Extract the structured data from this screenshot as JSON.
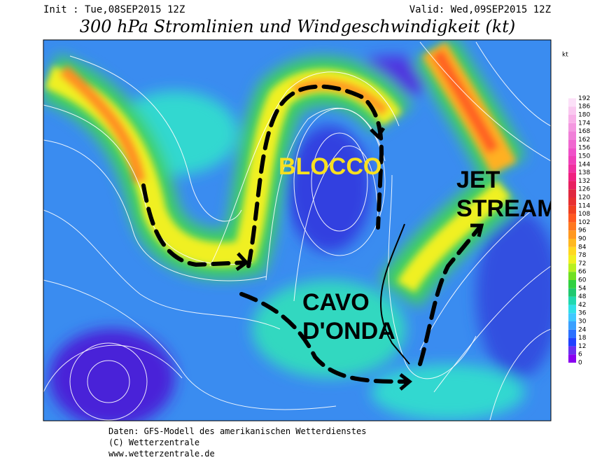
{
  "header": {
    "init": "Init : Tue,08SEP2015  12Z",
    "valid": "Valid: Wed,09SEP2015  12Z",
    "title": "300 hPa Stromlinien und Windgeschwindigkeit (kt)"
  },
  "colorbar": {
    "unit": "kt",
    "labels": [
      0,
      6,
      12,
      18,
      24,
      30,
      36,
      42,
      48,
      54,
      60,
      66,
      72,
      78,
      84,
      90,
      96,
      102,
      108,
      114,
      120,
      126,
      132,
      138,
      144,
      150,
      156,
      162,
      168,
      174,
      180,
      186,
      192
    ],
    "colors": [
      "#8a00f0",
      "#6a30f0",
      "#2040ff",
      "#2a70ff",
      "#3aa0ff",
      "#40c8ff",
      "#30e0e8",
      "#20d8b0",
      "#20c870",
      "#30d040",
      "#70e020",
      "#b8f020",
      "#f0f020",
      "#ffd820",
      "#ffb820",
      "#ff9820",
      "#ff7820",
      "#ff5820",
      "#f04020",
      "#e83030",
      "#e02840",
      "#e82060",
      "#f02080",
      "#f030a0",
      "#f040b8",
      "#f050c8",
      "#f068d0",
      "#f080d8",
      "#f498e0",
      "#f8b0e8",
      "#fac8f0",
      "#fce0f8"
    ]
  },
  "annotations": {
    "blocco": "BLOCCO",
    "jet_stream": [
      "JET",
      "STREAM"
    ],
    "cavo_onda": [
      "CAVO",
      "D'ONDA"
    ]
  },
  "footer": [
    "Daten: GFS-Modell des amerikanischen Wetterdienstes",
    "(C) Wetterzentrale",
    "www.wetterzentrale.de"
  ]
}
